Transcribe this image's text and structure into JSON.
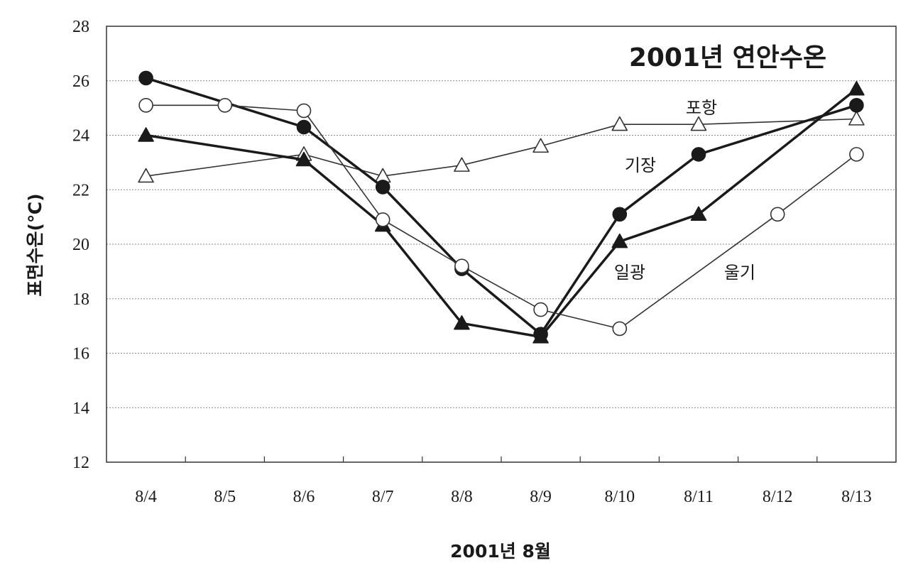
{
  "chart_data": {
    "type": "line",
    "title": "2001년 연안수온",
    "xlabel": "2001년 8월",
    "ylabel": "표면수온(℃)",
    "categories": [
      "8/4",
      "8/5",
      "8/6",
      "8/7",
      "8/8",
      "8/9",
      "8/10",
      "8/11",
      "8/12",
      "8/13"
    ],
    "ylim": [
      12,
      28
    ],
    "yticks": [
      12,
      14,
      16,
      18,
      20,
      22,
      24,
      26,
      28
    ],
    "grid": true,
    "series": [
      {
        "name": "포항",
        "marker": "open-triangle",
        "color": "#333333",
        "values": [
          22.5,
          null,
          23.3,
          22.5,
          22.9,
          23.6,
          24.4,
          24.4,
          null,
          24.6
        ]
      },
      {
        "name": "기장",
        "marker": "filled-circle",
        "color": "#1a1a1a",
        "values": [
          26.1,
          null,
          24.3,
          22.1,
          19.1,
          16.7,
          21.1,
          23.3,
          null,
          25.1
        ]
      },
      {
        "name": "일광",
        "marker": "filled-triangle",
        "color": "#1a1a1a",
        "values": [
          24.0,
          null,
          23.1,
          20.7,
          17.1,
          16.6,
          20.1,
          21.1,
          null,
          25.7
        ]
      },
      {
        "name": "울기",
        "marker": "open-circle",
        "color": "#333333",
        "values": [
          25.1,
          25.1,
          24.9,
          20.9,
          19.2,
          17.6,
          16.9,
          null,
          21.1,
          23.3
        ]
      }
    ]
  }
}
